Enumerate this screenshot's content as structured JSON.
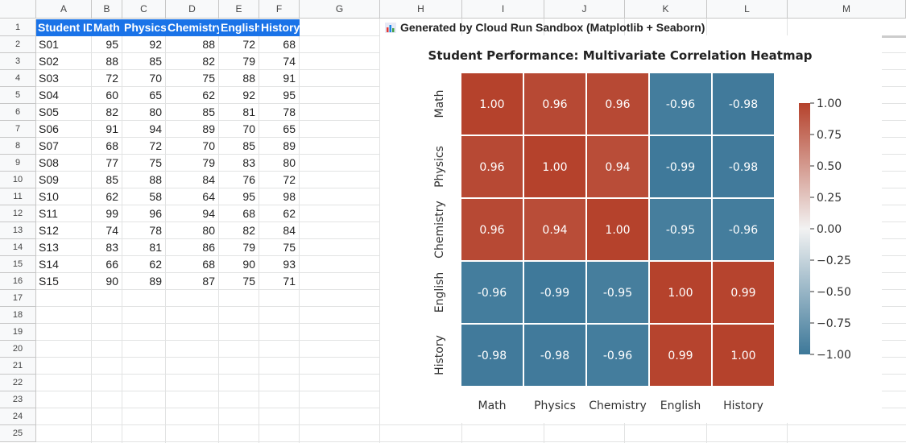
{
  "columns": [
    "A",
    "B",
    "C",
    "D",
    "E",
    "F",
    "G",
    "H",
    "I",
    "J",
    "K",
    "L",
    "M"
  ],
  "rows": [
    "1",
    "2",
    "3",
    "4",
    "5",
    "6",
    "7",
    "8",
    "9",
    "10",
    "11",
    "12",
    "13",
    "14",
    "15",
    "16",
    "17",
    "18",
    "19",
    "20",
    "21",
    "22",
    "23",
    "24",
    "25"
  ],
  "table": {
    "headers": [
      "Student ID",
      "Math",
      "Physics",
      "Chemistry",
      "English",
      "History"
    ],
    "data": [
      [
        "S01",
        95,
        92,
        88,
        72,
        68
      ],
      [
        "S02",
        88,
        85,
        82,
        79,
        74
      ],
      [
        "S03",
        72,
        70,
        75,
        88,
        91
      ],
      [
        "S04",
        60,
        65,
        62,
        92,
        95
      ],
      [
        "S05",
        82,
        80,
        85,
        81,
        78
      ],
      [
        "S06",
        91,
        94,
        89,
        70,
        65
      ],
      [
        "S07",
        68,
        72,
        70,
        85,
        89
      ],
      [
        "S08",
        77,
        75,
        79,
        83,
        80
      ],
      [
        "S09",
        85,
        88,
        84,
        76,
        72
      ],
      [
        "S10",
        62,
        58,
        64,
        95,
        98
      ],
      [
        "S11",
        99,
        96,
        94,
        68,
        62
      ],
      [
        "S12",
        74,
        78,
        80,
        82,
        84
      ],
      [
        "S13",
        83,
        81,
        86,
        79,
        75
      ],
      [
        "S14",
        66,
        62,
        68,
        90,
        93
      ],
      [
        "S15",
        90,
        89,
        87,
        75,
        71
      ]
    ],
    "header_color": "#1a73e8"
  },
  "banner": {
    "text": "Generated by Cloud Run Sandbox (Matplotlib + Seaborn)",
    "icon": "bar-chart-icon"
  },
  "chart_data": {
    "type": "heatmap",
    "title": "Student Performance: Multivariate Correlation Heatmap",
    "x_labels": [
      "Math",
      "Physics",
      "Chemistry",
      "English",
      "History"
    ],
    "y_labels": [
      "Math",
      "Physics",
      "Chemistry",
      "English",
      "History"
    ],
    "values": [
      [
        1.0,
        0.96,
        0.96,
        -0.96,
        -0.98
      ],
      [
        0.96,
        1.0,
        0.94,
        -0.99,
        -0.98
      ],
      [
        0.96,
        0.94,
        1.0,
        -0.95,
        -0.96
      ],
      [
        -0.96,
        -0.99,
        -0.95,
        1.0,
        0.99
      ],
      [
        -0.98,
        -0.98,
        -0.96,
        0.99,
        1.0
      ]
    ],
    "vmin": -1,
    "vmax": 1,
    "colorbar_ticks": [
      "1.00",
      "0.75",
      "0.50",
      "0.25",
      "0.00",
      "−0.25",
      "−0.50",
      "−0.75",
      "−1.00"
    ],
    "colorbar_tick_values": [
      1,
      0.75,
      0.5,
      0.25,
      0,
      -0.25,
      -0.5,
      -0.75,
      -1
    ],
    "colors": {
      "positive": "#b5422c",
      "negative": "#3d7899",
      "neutral": "#f2f2f2"
    }
  }
}
